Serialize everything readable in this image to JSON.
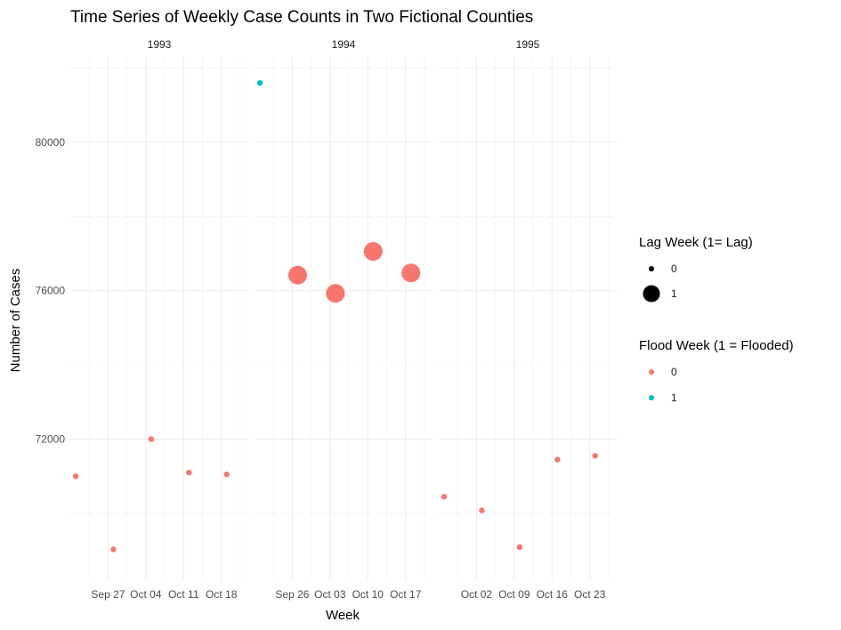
{
  "chart_data": {
    "type": "scatter",
    "title": "Time Series of Weekly Case Counts in Two Fictional Counties",
    "xlabel": "Week",
    "ylabel": "Number of Cases",
    "ylim": [
      68200,
      82300
    ],
    "y_ticks": [
      72000,
      76000,
      80000
    ],
    "y_tick_labels": [
      "72000",
      "76000",
      "80000"
    ],
    "grid": true,
    "colors": {
      "flood_0": "#F8766D",
      "flood_1": "#00BFC4"
    },
    "legends": [
      {
        "title": "Lag Week (1= Lag)",
        "type": "size",
        "entries": [
          {
            "label": "0",
            "value": 0
          },
          {
            "label": "1",
            "value": 1
          }
        ]
      },
      {
        "title": "Flood Week (1 = Flooded)",
        "type": "color",
        "entries": [
          {
            "label": "0",
            "value": 0
          },
          {
            "label": "1",
            "value": 1
          }
        ]
      }
    ],
    "legend_position": "right",
    "facets": [
      {
        "label": "1993",
        "xlim": [
          "1993-09-20",
          "1993-10-23"
        ],
        "x_ticks": [
          "1993-09-27",
          "1993-10-04",
          "1993-10-11",
          "1993-10-18"
        ],
        "x_tick_labels": [
          "Sep 27",
          "Oct 04",
          "Oct 11",
          "Oct 18"
        ],
        "points": [
          {
            "x": "1993-09-21",
            "y": 71000,
            "flood": 0,
            "lag": 0
          },
          {
            "x": "1993-09-28",
            "y": 69030,
            "flood": 0,
            "lag": 0
          },
          {
            "x": "1993-10-05",
            "y": 72000,
            "flood": 0,
            "lag": 0
          },
          {
            "x": "1993-10-12",
            "y": 71100,
            "flood": 0,
            "lag": 0
          },
          {
            "x": "1993-10-19",
            "y": 71050,
            "flood": 0,
            "lag": 0
          }
        ]
      },
      {
        "label": "1994",
        "xlim": [
          "1994-09-19",
          "1994-10-22"
        ],
        "x_ticks": [
          "1994-09-26",
          "1994-10-03",
          "1994-10-10",
          "1994-10-17"
        ],
        "x_tick_labels": [
          "Sep 26",
          "Oct 03",
          "Oct 10",
          "Oct 17"
        ],
        "points": [
          {
            "x": "1994-09-20",
            "y": 81600,
            "flood": 1,
            "lag": 0
          },
          {
            "x": "1994-09-27",
            "y": 76420,
            "flood": 0,
            "lag": 1
          },
          {
            "x": "1994-10-04",
            "y": 75930,
            "flood": 0,
            "lag": 1
          },
          {
            "x": "1994-10-11",
            "y": 77060,
            "flood": 0,
            "lag": 1
          },
          {
            "x": "1994-10-18",
            "y": 76480,
            "flood": 0,
            "lag": 1
          }
        ]
      },
      {
        "label": "1995",
        "xlim": [
          "1995-09-25",
          "1995-10-28"
        ],
        "x_ticks": [
          "1995-10-02",
          "1995-10-09",
          "1995-10-16",
          "1995-10-23"
        ],
        "x_tick_labels": [
          "Oct 02",
          "Oct 09",
          "Oct 16",
          "Oct 23"
        ],
        "points": [
          {
            "x": "1995-09-26",
            "y": 70450,
            "flood": 0,
            "lag": 0
          },
          {
            "x": "1995-10-03",
            "y": 70080,
            "flood": 0,
            "lag": 0
          },
          {
            "x": "1995-10-10",
            "y": 69090,
            "flood": 0,
            "lag": 0
          },
          {
            "x": "1995-10-17",
            "y": 71450,
            "flood": 0,
            "lag": 0
          },
          {
            "x": "1995-10-24",
            "y": 71550,
            "flood": 0,
            "lag": 0
          }
        ]
      }
    ]
  }
}
